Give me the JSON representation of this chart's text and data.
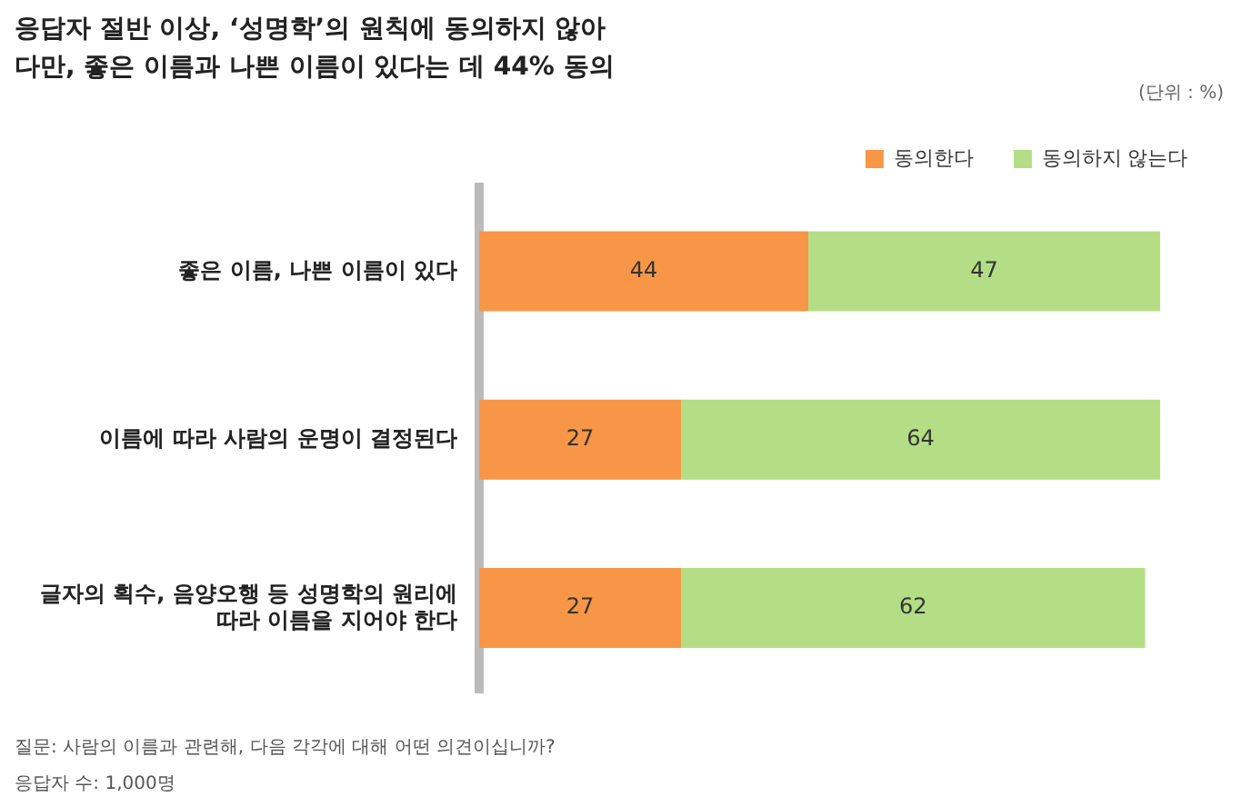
{
  "chart_data": {
    "type": "bar",
    "orientation": "horizontal",
    "stacked": true,
    "title": "응답자 절반 이상, ‘성명학’의 원칙에 동의하지 않아",
    "subtitle": "다만, 좋은 이름과 나쁜 이름이 있다는 데 44% 동의",
    "categories": [
      "좋은 이름, 나쁜 이름이 있다",
      "이름에 따라 사람의 운명이 결정된다",
      "글자의 획수, 음양오행 등 성명학의 원리에 따라 이름을 지어야 한다"
    ],
    "series": [
      {
        "name": "동의한다",
        "color": "#f79646",
        "values": [
          44,
          27,
          27
        ]
      },
      {
        "name": "동의하지 않는다",
        "color": "#b3de85",
        "values": [
          47,
          64,
          62
        ]
      }
    ],
    "data_labels": true,
    "legend": "top right",
    "grid": false,
    "tick_labels": "y",
    "annotations": [
      "(단위 : %)",
      "질문:  사람의 이름과 관련해, 다음 각각에 대해 어떤 의견이십니까?",
      "응답자 수: 1,000명"
    ]
  }
}
